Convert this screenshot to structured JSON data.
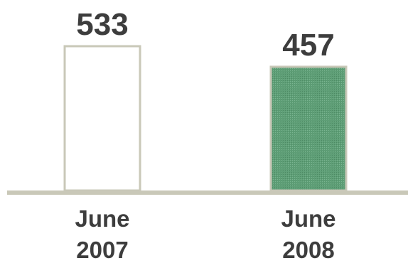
{
  "chart_data": {
    "type": "bar",
    "categories": [
      [
        "June",
        "2007"
      ],
      [
        "June",
        "2008"
      ]
    ],
    "values": [
      533,
      457
    ],
    "data_labels": [
      "533",
      "457"
    ],
    "title": "",
    "xlabel": "",
    "ylabel": "",
    "ylim": [
      0,
      533
    ],
    "grid": false,
    "legend": "none",
    "colors": {
      "bar_1_fill": "#ffffff",
      "bar_1_stroke": "#c9c8b8",
      "bar_2_fill": "#5e9e76",
      "bar_2_stroke": "#c9c8b8",
      "baseline": "#c9c8b8",
      "text": "#3d3d3d"
    }
  }
}
